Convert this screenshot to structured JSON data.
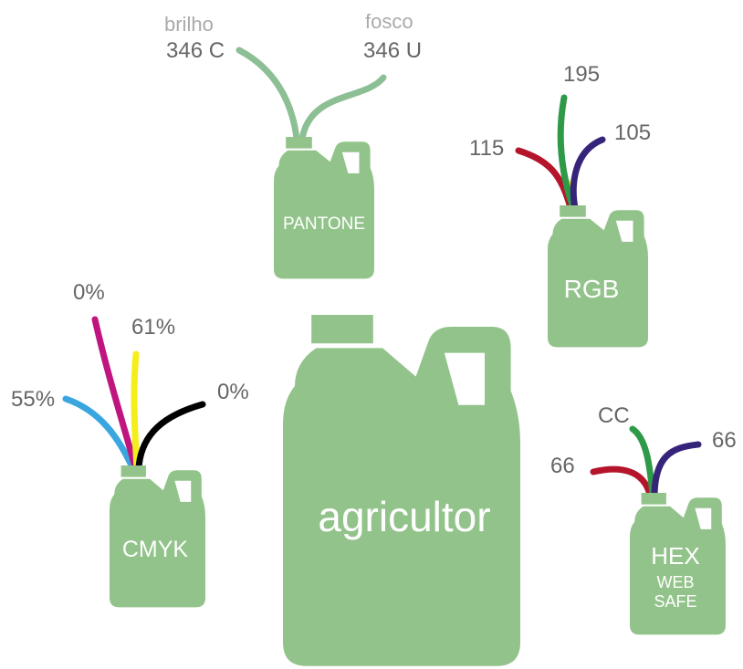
{
  "center": {
    "label": "agricultor"
  },
  "pantone": {
    "label": "PANTONE",
    "wires": [
      {
        "caption": "brilho",
        "value": "346 C"
      },
      {
        "caption": "fosco",
        "value": "346 U"
      }
    ]
  },
  "rgb": {
    "label": "RGB",
    "wires": {
      "red": "115",
      "green": "195",
      "blue": "105"
    }
  },
  "cmyk": {
    "label": "CMYK",
    "wires": {
      "cyan": "55%",
      "magenta": "0%",
      "yellow": "61%",
      "black": "0%"
    }
  },
  "hex": {
    "label": [
      "HEX",
      "WEB",
      "SAFE"
    ],
    "wires": {
      "red": "66",
      "green": "CC",
      "blue": "66"
    }
  }
}
